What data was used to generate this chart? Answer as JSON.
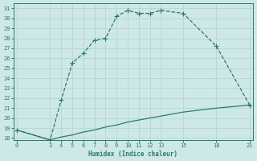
{
  "line1_x": [
    0,
    3,
    4,
    5,
    6,
    7,
    8,
    9,
    10,
    11,
    12,
    13,
    15,
    18,
    21
  ],
  "line1_y": [
    18.8,
    17.8,
    21.8,
    25.5,
    26.5,
    27.8,
    28.0,
    30.2,
    30.8,
    30.5,
    30.5,
    30.8,
    30.5,
    27.2,
    21.3
  ],
  "line2_x": [
    0,
    3,
    4,
    5,
    6,
    7,
    8,
    9,
    10,
    11,
    12,
    13,
    15,
    18,
    21
  ],
  "line2_y": [
    18.8,
    17.8,
    18.1,
    18.3,
    18.6,
    18.8,
    19.1,
    19.3,
    19.6,
    19.8,
    20.0,
    20.2,
    20.6,
    21.0,
    21.3
  ],
  "color": "#2d7a6e",
  "bg_color": "#cde8e5",
  "grid_color": "#b0d4d0",
  "xlabel": "Humidex (Indice chaleur)",
  "xticks": [
    0,
    3,
    4,
    5,
    6,
    7,
    8,
    9,
    10,
    11,
    12,
    13,
    15,
    18,
    21
  ],
  "yticks": [
    18,
    19,
    20,
    21,
    22,
    23,
    24,
    25,
    26,
    27,
    28,
    29,
    30,
    31
  ],
  "xlim": [
    -0.3,
    21.3
  ],
  "ylim": [
    17.8,
    31.5
  ]
}
